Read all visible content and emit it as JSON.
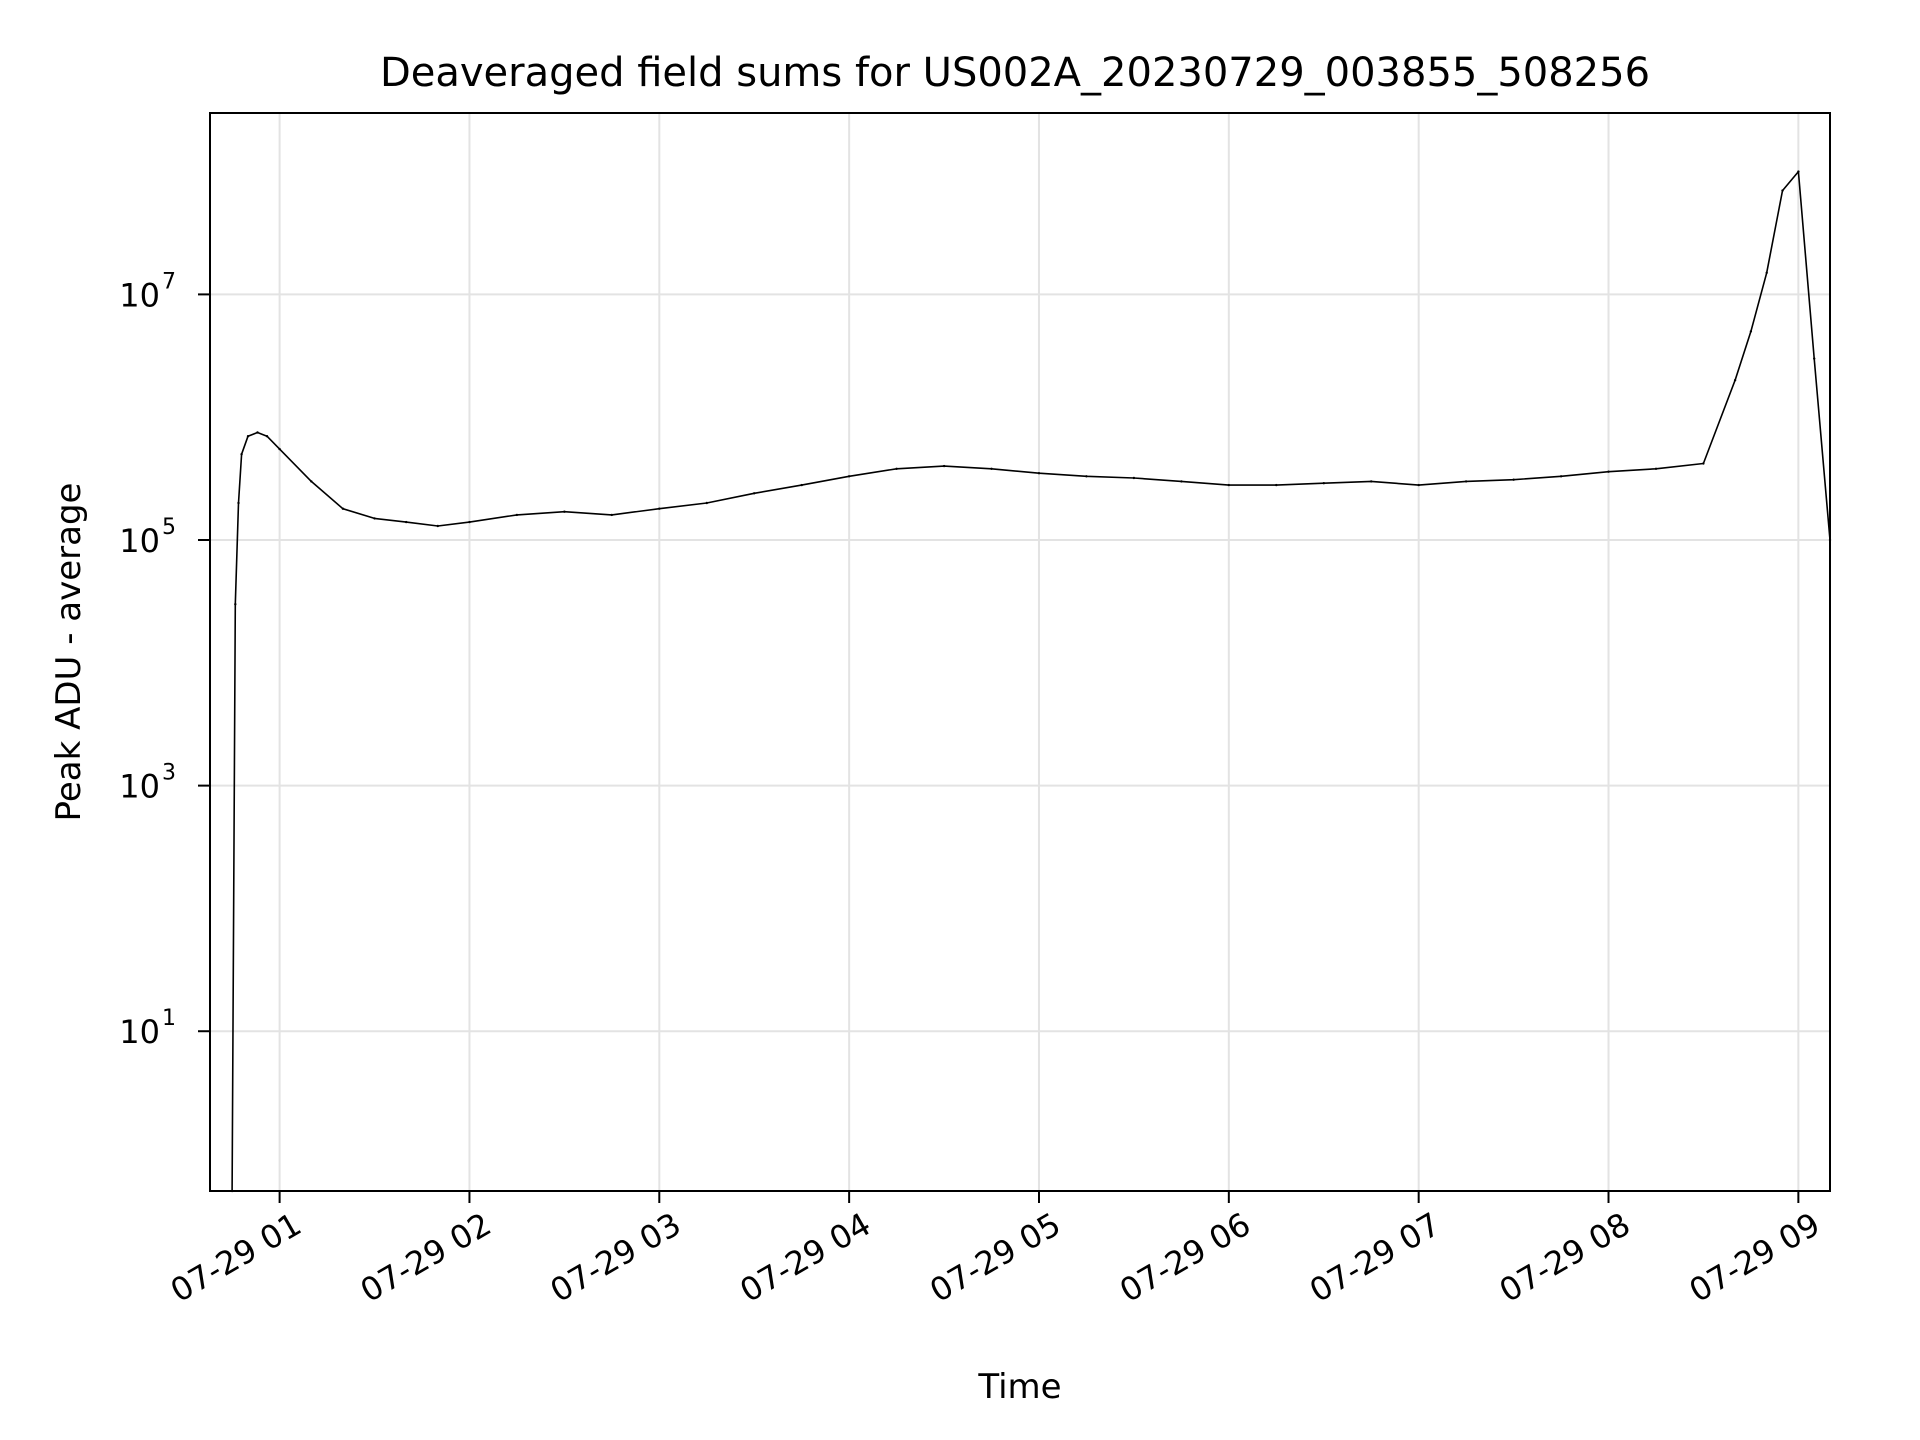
{
  "chart_data": {
    "type": "line",
    "title": "Deaveraged field sums for US002A_20230729_003855_508256",
    "xlabel": "Time",
    "ylabel": "Peak ADU - average",
    "yscale": "log",
    "ylim": [
      0.5,
      300000000
    ],
    "xlim": [
      "07-29 00:38",
      "07-29 09:10"
    ],
    "grid": true,
    "line_color": "#000000",
    "x_ticks": [
      "07-29 01",
      "07-29 02",
      "07-29 03",
      "07-29 04",
      "07-29 05",
      "07-29 06",
      "07-29 07",
      "07-29 08",
      "07-29 09"
    ],
    "y_ticks": [
      {
        "base": "10",
        "exp": "1",
        "value": 10
      },
      {
        "base": "10",
        "exp": "3",
        "value": 1000
      },
      {
        "base": "10",
        "exp": "5",
        "value": 100000
      },
      {
        "base": "10",
        "exp": "7",
        "value": 10000000
      }
    ],
    "series": [
      {
        "x": [
          "07-29 00:45",
          "07-29 00:46",
          "07-29 00:47",
          "07-29 00:48",
          "07-29 00:50",
          "07-29 00:53",
          "07-29 00:56",
          "07-29 01:00",
          "07-29 01:10",
          "07-29 01:20",
          "07-29 01:30",
          "07-29 01:40",
          "07-29 01:50",
          "07-29 02:00",
          "07-29 02:15",
          "07-29 02:30",
          "07-29 02:45",
          "07-29 03:00",
          "07-29 03:15",
          "07-29 03:30",
          "07-29 03:45",
          "07-29 04:00",
          "07-29 04:15",
          "07-29 04:30",
          "07-29 04:45",
          "07-29 05:00",
          "07-29 05:15",
          "07-29 05:30",
          "07-29 05:45",
          "07-29 06:00",
          "07-29 06:15",
          "07-29 06:30",
          "07-29 06:45",
          "07-29 07:00",
          "07-29 07:15",
          "07-29 07:30",
          "07-29 07:45",
          "07-29 08:00",
          "07-29 08:15",
          "07-29 08:30",
          "07-29 08:40",
          "07-29 08:45",
          "07-29 08:50",
          "07-29 08:55",
          "07-29 09:00",
          "07-29 09:05",
          "07-29 09:10"
        ],
        "values": [
          0.5,
          30000,
          200000,
          500000,
          700000,
          750000,
          700000,
          550000,
          300000,
          180000,
          150000,
          140000,
          130000,
          140000,
          160000,
          170000,
          160000,
          180000,
          200000,
          240000,
          280000,
          330000,
          380000,
          400000,
          380000,
          350000,
          330000,
          320000,
          300000,
          280000,
          280000,
          290000,
          300000,
          280000,
          300000,
          310000,
          330000,
          360000,
          380000,
          420000,
          2000000,
          5000000,
          15000000,
          70000000,
          100000000,
          3000000,
          100000
        ]
      }
    ]
  }
}
